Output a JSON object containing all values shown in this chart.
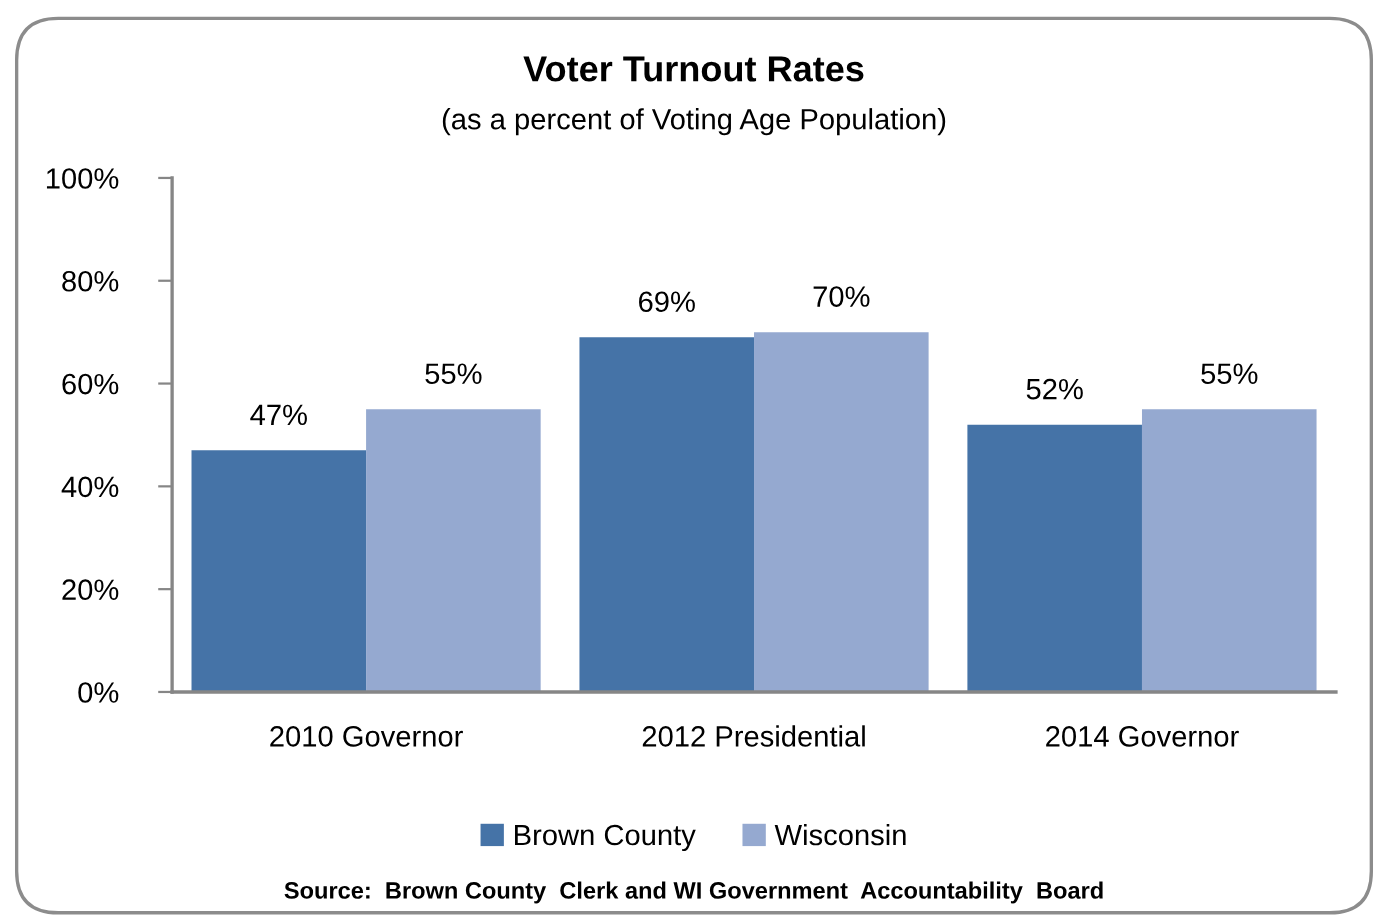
{
  "chart_data": {
    "type": "bar",
    "title": "Voter Turnout Rates",
    "subtitle": "(as a percent of Voting Age Population)",
    "categories": [
      "2010 Governor",
      "2012 Presidential",
      "2014 Governor"
    ],
    "series": [
      {
        "name": "Brown County",
        "color": "#4573a7",
        "values": [
          47,
          69,
          52
        ],
        "value_labels": [
          "47%",
          "69%",
          "52%"
        ]
      },
      {
        "name": "Wisconsin",
        "color": "#95a9d0",
        "values": [
          55,
          70,
          55
        ],
        "value_labels": [
          "55%",
          "70%",
          "55%"
        ]
      }
    ],
    "ylim": [
      0,
      100
    ],
    "yticks": [
      {
        "value": 0,
        "label": "0%"
      },
      {
        "value": 20,
        "label": "20%"
      },
      {
        "value": 40,
        "label": "40%"
      },
      {
        "value": 60,
        "label": "60%"
      },
      {
        "value": 80,
        "label": "80%"
      },
      {
        "value": 100,
        "label": "100%"
      }
    ],
    "grid": false,
    "legend": "bottom",
    "annotations": [
      "Source:  Brown County  Clerk and WI Government  Accountability  Board"
    ]
  }
}
